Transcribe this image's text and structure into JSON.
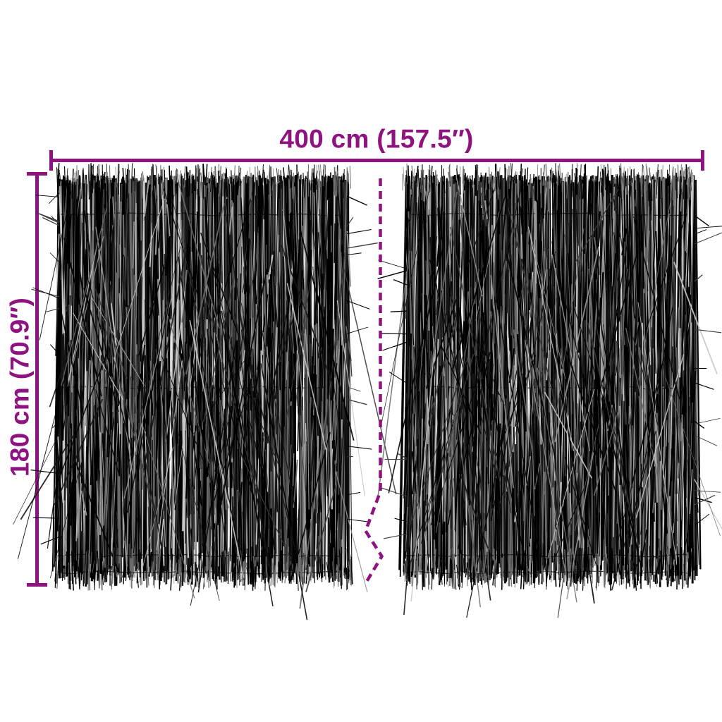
{
  "diagram": {
    "accent_color": "#8E1380",
    "background_color": "#ffffff",
    "width_dimension": {
      "label": "400 cm (157.5″)"
    },
    "height_dimension": {
      "label": "180 cm (70.9″)"
    },
    "panel_count": 2,
    "twig_palette": [
      "#000000",
      "#161616",
      "#3a3a3a",
      "#6b6b6b",
      "#9a9a9a",
      "#c9c9c9"
    ]
  }
}
